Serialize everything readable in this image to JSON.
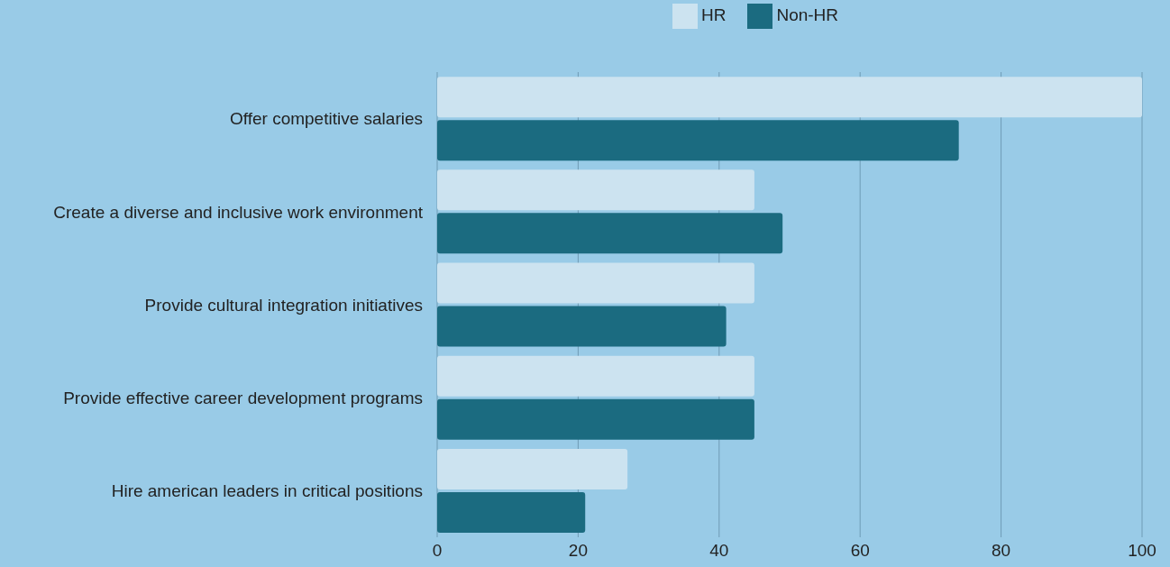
{
  "chart_data": {
    "type": "bar",
    "orientation": "horizontal",
    "categories": [
      "Offer competitive salaries",
      "Create a diverse and inclusive work environment",
      "Provide cultural integration initiatives",
      "Provide effective career development programs",
      "Hire american leaders in critical positions"
    ],
    "series": [
      {
        "name": "HR",
        "color": "#cce3f0",
        "values": [
          100,
          45,
          45,
          45,
          27
        ]
      },
      {
        "name": "Non-HR",
        "color": "#1b6b80",
        "values": [
          74,
          49,
          41,
          45,
          21
        ]
      }
    ],
    "xlim": [
      0,
      100
    ],
    "xticks": [
      0,
      20,
      40,
      60,
      80,
      100
    ],
    "grid": "x",
    "legend": "top"
  }
}
